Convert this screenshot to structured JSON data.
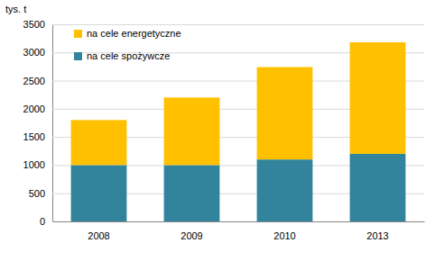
{
  "chart_data": {
    "type": "bar",
    "stacked": true,
    "y_label": "tys. t",
    "categories": [
      "2008",
      "2009",
      "2010",
      "2013"
    ],
    "series": [
      {
        "name": "na cele spożywcze",
        "color": "#31849b",
        "values": [
          1000,
          1000,
          1100,
          1200
        ]
      },
      {
        "name": "na cele energetyczne",
        "color": "#ffc000",
        "values": [
          800,
          1200,
          1640,
          1980
        ]
      }
    ],
    "ylim": [
      0,
      3500
    ],
    "yticks": [
      0,
      500,
      1000,
      1500,
      2000,
      2500,
      3000,
      3500
    ],
    "grid": true,
    "legend": "upper left"
  }
}
